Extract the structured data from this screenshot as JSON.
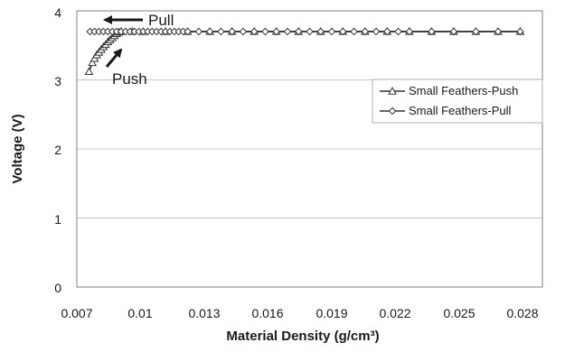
{
  "chart_data": {
    "type": "line",
    "xlabel": "Material Density (g/cm³)",
    "ylabel": "Voltage (V)",
    "xlim": [
      0.007,
      0.028
    ],
    "ylim": [
      0,
      4
    ],
    "x_ticks": [
      "0.007",
      "0.01",
      "0.013",
      "0.016",
      "0.019",
      "0.022",
      "0.025",
      "0.028"
    ],
    "y_ticks": [
      "0",
      "1",
      "2",
      "3",
      "4"
    ],
    "grid": "horizontal",
    "legend_position": "right",
    "series": [
      {
        "name": "Small Feathers-Push",
        "marker": "triangle",
        "color": "#333333",
        "x": [
          0.00755,
          0.0077,
          0.0078,
          0.0079,
          0.008,
          0.0081,
          0.0082,
          0.0083,
          0.0084,
          0.0085,
          0.0086,
          0.0087,
          0.0088,
          0.0089,
          0.009,
          0.0095,
          0.01,
          0.011,
          0.012,
          0.013,
          0.014,
          0.015,
          0.016,
          0.017,
          0.018,
          0.019,
          0.02,
          0.021,
          0.022,
          0.023,
          0.024,
          0.025,
          0.026,
          0.027
        ],
        "y": [
          3.12,
          3.25,
          3.31,
          3.36,
          3.4,
          3.44,
          3.48,
          3.51,
          3.55,
          3.58,
          3.61,
          3.64,
          3.67,
          3.69,
          3.7,
          3.7,
          3.7,
          3.7,
          3.7,
          3.7,
          3.7,
          3.7,
          3.7,
          3.7,
          3.7,
          3.7,
          3.7,
          3.7,
          3.7,
          3.7,
          3.7,
          3.7,
          3.7,
          3.7
        ]
      },
      {
        "name": "Small Feathers-Pull",
        "marker": "diamond",
        "color": "#333333",
        "x": [
          0.0076,
          0.0078,
          0.008,
          0.0082,
          0.0084,
          0.0086,
          0.0088,
          0.009,
          0.0092,
          0.0094,
          0.0096,
          0.0098,
          0.01,
          0.0102,
          0.0104,
          0.0106,
          0.0108,
          0.011,
          0.0112,
          0.0114,
          0.0116,
          0.0118,
          0.012,
          0.0125,
          0.013,
          0.0135,
          0.014,
          0.0145,
          0.015,
          0.0155,
          0.016,
          0.0165,
          0.017,
          0.0175,
          0.018,
          0.0185,
          0.019,
          0.0195,
          0.02,
          0.0205,
          0.021,
          0.0215,
          0.022,
          0.023,
          0.024,
          0.025,
          0.026,
          0.027
        ],
        "y": [
          3.7,
          3.7,
          3.7,
          3.7,
          3.7,
          3.7,
          3.7,
          3.7,
          3.7,
          3.7,
          3.7,
          3.7,
          3.7,
          3.7,
          3.7,
          3.7,
          3.7,
          3.7,
          3.7,
          3.7,
          3.7,
          3.7,
          3.7,
          3.7,
          3.7,
          3.7,
          3.7,
          3.7,
          3.7,
          3.7,
          3.7,
          3.7,
          3.7,
          3.7,
          3.7,
          3.7,
          3.7,
          3.7,
          3.7,
          3.7,
          3.7,
          3.7,
          3.7,
          3.7,
          3.7,
          3.7,
          3.7,
          3.7
        ]
      }
    ],
    "annotations": [
      {
        "text": "Pull",
        "arrow": "left"
      },
      {
        "text": "Push",
        "arrow": "up-right"
      }
    ]
  }
}
